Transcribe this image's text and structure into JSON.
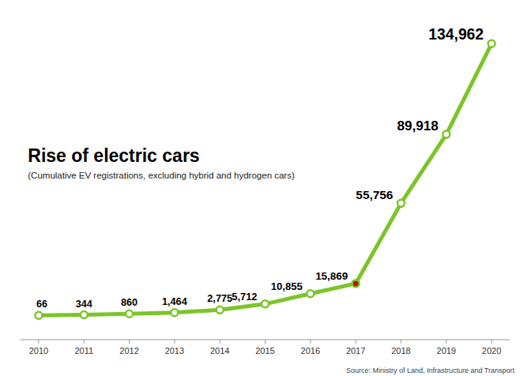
{
  "chart_data": {
    "type": "line",
    "title": "Rise of electric cars",
    "subtitle": "(Cumulative EV registrations, excluding hybrid and hydrogen cars)",
    "source": "Source: Ministry of Land, Infrastructure and Transport",
    "x": [
      2010,
      2011,
      2012,
      2013,
      2014,
      2015,
      2016,
      2017,
      2018,
      2019,
      2020
    ],
    "values": [
      66,
      344,
      860,
      1464,
      2775,
      5712,
      10855,
      15869,
      55756,
      89918,
      134962
    ],
    "value_labels": [
      "66",
      "344",
      "860",
      "1,464",
      "2,775",
      "5,712",
      "10,855",
      "15,869",
      "55,756",
      "89,918",
      "134,962"
    ],
    "color": "#7dc42a",
    "colors": [
      "#ffffff",
      "#ffffff",
      "#ffffff",
      "#ffffff",
      "#ffffff",
      "#ffffff",
      "#ffffff",
      "#cc0000",
      "#ffffff",
      "#ffffff",
      "#ffffff"
    ],
    "marker": "circle",
    "xlim": [
      2009.6,
      2020.4
    ],
    "xticks": [
      2010,
      2011,
      2012,
      2013,
      2014,
      2015,
      2016,
      2017,
      2018,
      2019,
      2020
    ],
    "ylim": [
      -12000,
      148000
    ],
    "tick_labels": "x",
    "data_labels": true,
    "grid": false
  }
}
